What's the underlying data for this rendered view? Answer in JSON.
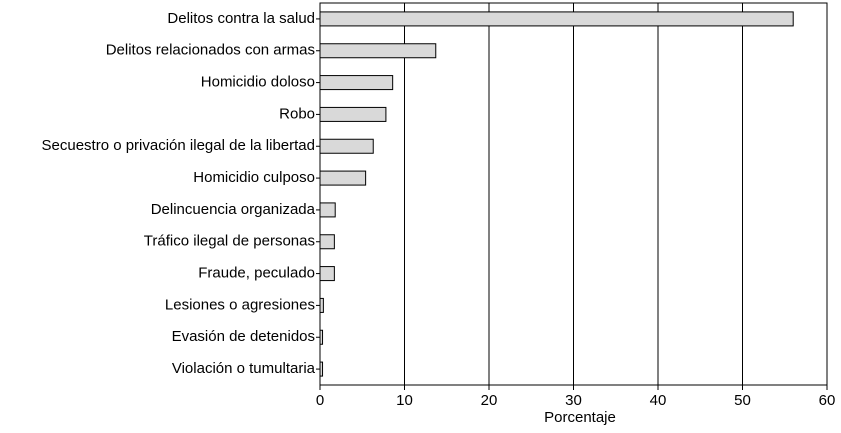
{
  "chart_data": {
    "type": "bar",
    "orientation": "horizontal",
    "x_label": "Porcentaje",
    "categories": [
      "Delitos contra la salud",
      "Delitos relacionados con armas",
      "Homicidio doloso",
      "Robo",
      "Secuestro o privación ilegal de la libertad",
      "Homicidio culposo",
      "Delincuencia organizada",
      "Tráfico ilegal de personas",
      "Fraude, peculado",
      "Lesiones o agresiones",
      "Evasión de detenidos",
      "Violación o tumultaria"
    ],
    "values": [
      56,
      13.7,
      8.6,
      7.8,
      6.3,
      5.4,
      1.8,
      1.7,
      1.7,
      0.4,
      0.3,
      0.3
    ],
    "color": "#d9d9d9",
    "xlim": [
      0,
      60
    ],
    "xticks": [
      0,
      10,
      20,
      30,
      40,
      50,
      60
    ],
    "grid": true
  }
}
